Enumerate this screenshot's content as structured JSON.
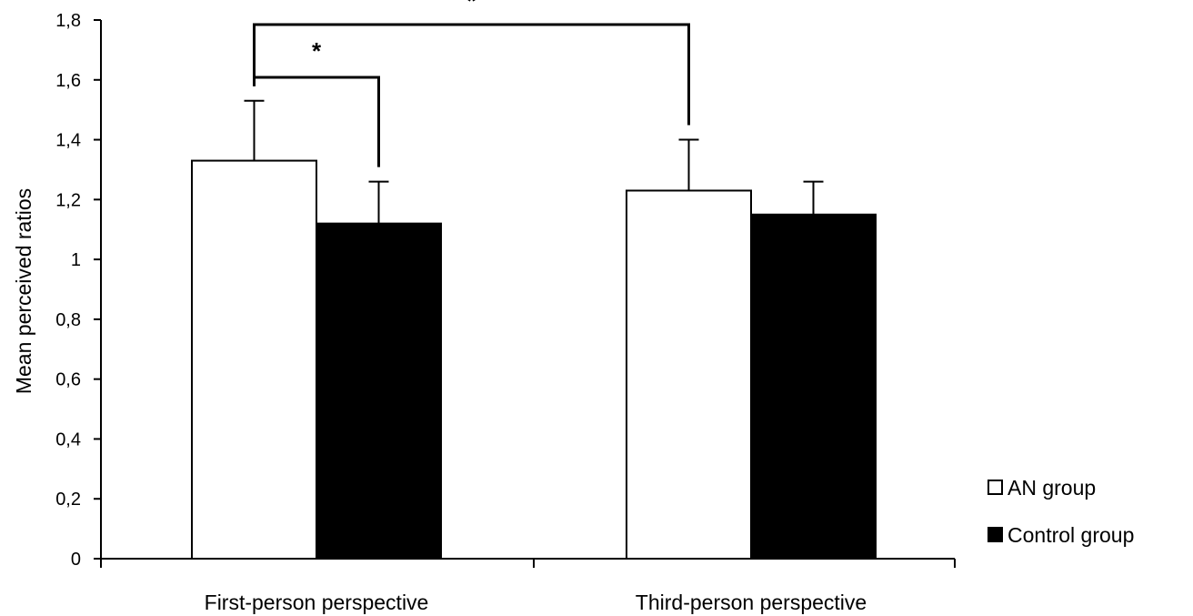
{
  "chart_data": {
    "type": "bar",
    "title": "",
    "xlabel": "",
    "ylabel": "Mean perceived ratios",
    "ylim": [
      0,
      1.8
    ],
    "yticks": [
      "0",
      "0,2",
      "0,4",
      "0,6",
      "0,8",
      "1",
      "1,2",
      "1,4",
      "1,6",
      "1,8"
    ],
    "categories": [
      "First-person perspective",
      "Third-person perspective"
    ],
    "series": [
      {
        "name": "AN group",
        "fill": "#ffffff",
        "values": [
          1.33,
          1.23
        ],
        "errors": [
          0.2,
          0.17
        ]
      },
      {
        "name": "Control group",
        "fill": "#000000",
        "values": [
          1.12,
          1.15
        ],
        "errors": [
          0.14,
          0.11
        ]
      }
    ],
    "significance": [
      {
        "from": {
          "series": 0,
          "category": 0
        },
        "to": {
          "series": 1,
          "category": 0
        },
        "label": "*"
      },
      {
        "from": {
          "series": 0,
          "category": 0
        },
        "to": {
          "series": 0,
          "category": 1
        },
        "label": "*"
      }
    ],
    "legend_position": "bottom-right",
    "grid": false
  }
}
